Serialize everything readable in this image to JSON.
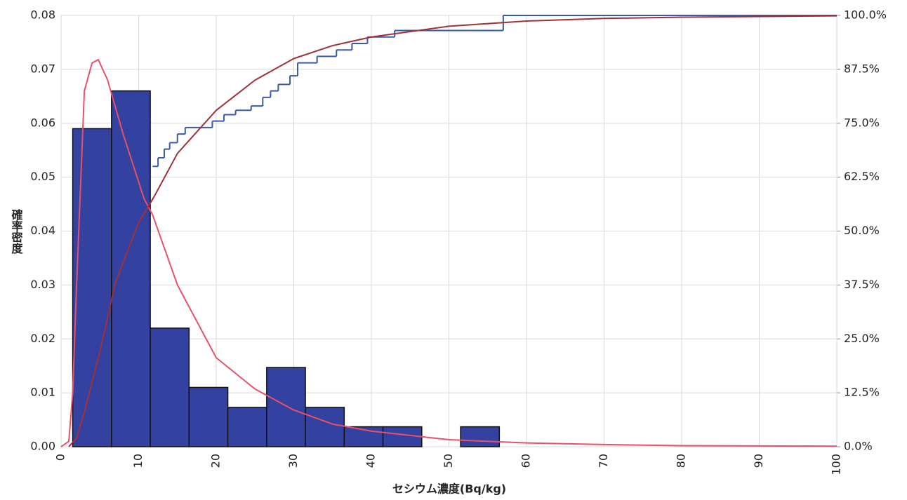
{
  "chart_data": {
    "type": "histogram",
    "xlabel": "セシウム濃度(Bq/kg)",
    "ylabel": "確率密度",
    "bins": [
      1.5,
      6.5,
      11.5,
      16.5,
      21.5,
      26.5,
      31.5,
      36.5,
      41.5,
      46.5,
      51.5,
      56.5
    ],
    "values": [
      0.059,
      0.066,
      0.022,
      0.011,
      0.0073,
      0.0147,
      0.0073,
      0.0037,
      0.0037,
      0,
      0.0037
    ],
    "color": "#3342a0",
    "xlim": [
      0,
      100
    ],
    "xticks": [
      0,
      10,
      20,
      30,
      40,
      50,
      60,
      70,
      80,
      90,
      100
    ],
    "ylim": [
      0,
      0.08
    ],
    "yticks": [
      {
        "value": 0,
        "label": "0.00"
      },
      0.01,
      0.02,
      0.03,
      0.04,
      0.05,
      0.06,
      0.07,
      0.08
    ],
    "y2lim": [
      0,
      100
    ],
    "y2ticks": [
      {
        "value": 0,
        "label": "0.0%"
      },
      {
        "value": 12.5,
        "label": "12.5%"
      },
      {
        "value": 25,
        "label": "25.0%"
      },
      {
        "value": 37.5,
        "label": "37.5%"
      },
      {
        "value": 50,
        "label": "50.0%"
      },
      {
        "value": 62.5,
        "label": "62.5%"
      },
      {
        "value": 75,
        "label": "75.0%"
      },
      {
        "value": 87.5,
        "label": "87.5%"
      },
      {
        "value": 100,
        "label": "100.0%"
      }
    ],
    "grid": true,
    "series": [
      {
        "type": "step",
        "axis": "y2",
        "color": "#3a5aa8",
        "x": [
          11.8,
          12.5,
          13.3,
          14,
          15,
          16,
          18,
          19.5,
          21,
          22.5,
          24.5,
          26,
          27,
          28,
          29.5,
          30.5,
          33,
          35.5,
          37.5,
          39.5,
          43,
          57,
          100
        ],
        "values": [
          65,
          67,
          69,
          70.5,
          72.5,
          74,
          74,
          75.5,
          77,
          78,
          79,
          81,
          82.5,
          84,
          86,
          89,
          90.5,
          92,
          93.5,
          95,
          96.5,
          100,
          100
        ]
      },
      {
        "type": "line",
        "color": "#e8506a",
        "x": [
          0,
          1,
          1.5,
          2,
          3,
          4,
          4.8,
          6,
          8,
          10.7,
          11.8,
          15,
          20,
          25,
          30,
          35,
          40,
          50,
          60,
          70,
          80,
          100
        ],
        "values": [
          0,
          0.001,
          0.01,
          0.03,
          0.066,
          0.0712,
          0.0718,
          0.068,
          0.058,
          0.046,
          0.043,
          0.03,
          0.0165,
          0.0107,
          0.0068,
          0.0042,
          0.0029,
          0.0013,
          0.0007,
          0.0004,
          0.0002,
          0.0001
        ]
      },
      {
        "type": "line",
        "axis": "y2",
        "color": "#a0303a",
        "x": [
          1,
          2,
          3,
          5,
          7,
          10,
          12,
          15,
          20,
          25,
          30,
          35,
          40,
          50,
          60,
          70,
          80,
          100
        ],
        "values": [
          0,
          2,
          8,
          22,
          38,
          52,
          58,
          68,
          78,
          85,
          90,
          93,
          95,
          97.5,
          98.7,
          99.3,
          99.6,
          99.9
        ]
      }
    ]
  }
}
